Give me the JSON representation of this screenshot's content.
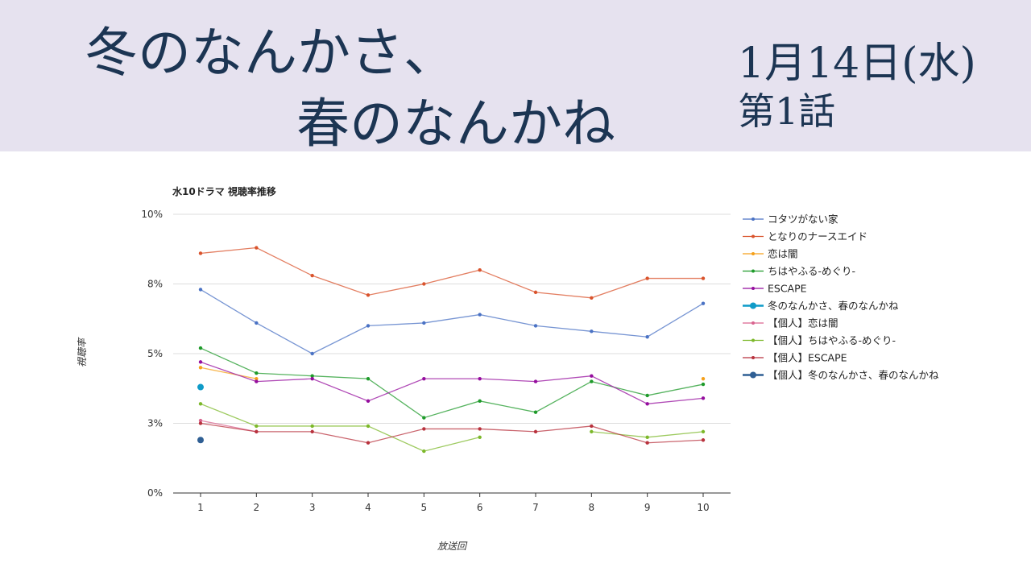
{
  "header": {
    "title_line1": "冬のなんかさ、",
    "title_line2": "春のなんかね",
    "date": "1月14日(水)",
    "episode": "第1話"
  },
  "chart_data": {
    "type": "line",
    "title": "水10ドラマ 視聴率推移",
    "xlabel": "放送回",
    "ylabel": "視聴率",
    "x": [
      1,
      2,
      3,
      4,
      5,
      6,
      7,
      8,
      9,
      10
    ],
    "ylim": [
      0,
      10
    ],
    "yticks": [
      0,
      2.5,
      5,
      7.5,
      10
    ],
    "ytick_labels": [
      "0%",
      "3%",
      "5%",
      "8%",
      "10%"
    ],
    "grid": true,
    "legend": "right",
    "series": [
      {
        "name": "コタツがない家",
        "color": "#4a72c4",
        "values": [
          7.3,
          6.1,
          5.0,
          6.0,
          6.1,
          6.4,
          6.0,
          5.8,
          5.6,
          6.8
        ]
      },
      {
        "name": "となりのナースエイド",
        "color": "#d9532c",
        "values": [
          8.6,
          8.8,
          7.8,
          7.1,
          7.5,
          8.0,
          7.2,
          7.0,
          7.7,
          7.7
        ]
      },
      {
        "name": "恋は闇",
        "color": "#f5a01a",
        "values": [
          4.5,
          4.1,
          null,
          null,
          null,
          null,
          null,
          null,
          null,
          4.1
        ]
      },
      {
        "name": "ちはやふる-めぐり-",
        "color": "#1e9a2a",
        "values": [
          5.2,
          4.3,
          4.2,
          4.1,
          2.7,
          3.3,
          2.9,
          4.0,
          3.5,
          3.9
        ]
      },
      {
        "name": "ESCAPE",
        "color": "#950d9e",
        "values": [
          4.7,
          4.0,
          4.1,
          3.3,
          4.1,
          4.1,
          4.0,
          4.2,
          3.2,
          3.4
        ]
      },
      {
        "name": "冬のなんかさ、春のなんかね",
        "color": "#0f9bc8",
        "big": true,
        "values": [
          3.8,
          null,
          null,
          null,
          null,
          null,
          null,
          null,
          null,
          null
        ]
      },
      {
        "name": "【個人】恋は闇",
        "color": "#d9648f",
        "values": [
          2.6,
          2.2,
          null,
          null,
          null,
          null,
          null,
          null,
          null,
          null
        ]
      },
      {
        "name": "【個人】ちはやふる-めぐり-",
        "color": "#7cb82a",
        "values": [
          3.2,
          2.4,
          2.4,
          2.4,
          1.5,
          2.0,
          null,
          2.2,
          2.0,
          2.2
        ]
      },
      {
        "name": "【個人】ESCAPE",
        "color": "#b8323d",
        "values": [
          2.5,
          2.2,
          2.2,
          1.8,
          2.3,
          2.3,
          2.2,
          2.4,
          1.8,
          1.9
        ]
      },
      {
        "name": "【個人】冬のなんかさ、春のなんかね",
        "color": "#2f5f94",
        "big": true,
        "values": [
          1.9,
          null,
          null,
          null,
          null,
          null,
          null,
          null,
          null,
          null
        ]
      }
    ]
  }
}
